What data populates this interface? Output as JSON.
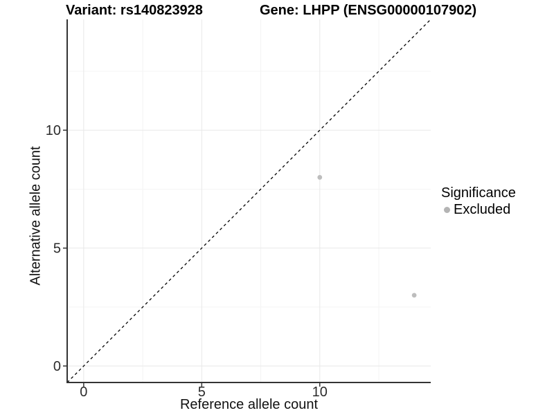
{
  "chart_data": {
    "type": "scatter",
    "titles": {
      "left": "Variant: rs140823928",
      "right": "Gene: LHPP (ENSG00000107902)"
    },
    "xlabel": "Reference allele count",
    "ylabel": "Alternative allele count",
    "xlim": [
      -0.7,
      14.7
    ],
    "ylim": [
      -0.7,
      14.7
    ],
    "x_ticks": [
      0,
      5,
      10
    ],
    "y_ticks": [
      0,
      5,
      10
    ],
    "x_minor_ticks": [
      2.5,
      7.5,
      12.5
    ],
    "y_minor_ticks": [
      2.5,
      7.5,
      12.5
    ],
    "grid": "major and minor, very light gray on white",
    "points": [
      {
        "x": 10,
        "y": 8
      },
      {
        "x": 14,
        "y": 3
      }
    ],
    "identity_line": {
      "slope": 1,
      "intercept": 0,
      "style": "dashed",
      "color": "#000000"
    },
    "legend": {
      "title": "Significance",
      "position": "right",
      "items": [
        {
          "label": "Excluded",
          "color": "#b4b4b4"
        }
      ]
    },
    "colors": {
      "point": "#bdbdbd",
      "grid_major": "#e8e8e8",
      "grid_minor": "#f4f4f4",
      "axis_line": "#333333",
      "tick_mark": "#333333",
      "tick_text": "#2b2b2b",
      "background": "#ffffff"
    }
  }
}
